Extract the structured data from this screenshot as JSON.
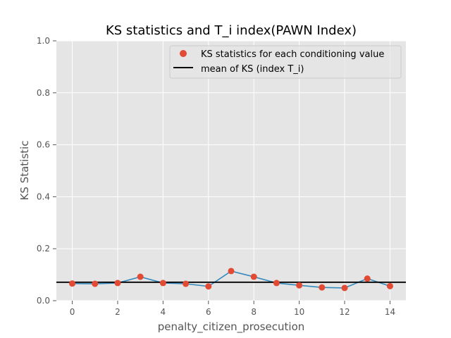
{
  "chart_data": {
    "type": "scatter",
    "title": "KS statistics and T_i index(PAWN Index)",
    "xlabel": "penalty_citizen_prosecution",
    "ylabel": "KS Statistic",
    "xlim": [
      -0.7,
      14.7
    ],
    "ylim": [
      0.0,
      1.0
    ],
    "xticks": [
      "0",
      "2",
      "4",
      "6",
      "8",
      "10",
      "12",
      "14"
    ],
    "yticks": [
      "0.0",
      "0.2",
      "0.4",
      "0.6",
      "0.8",
      "1.0"
    ],
    "grid": true,
    "legend_position": "top-right",
    "series": [
      {
        "name": "KS statistics for each conditioning value",
        "marker": "point",
        "color": "#E24A33",
        "line_color": "#348ABD",
        "x": [
          0,
          1,
          2,
          3,
          4,
          5,
          6,
          7,
          8,
          9,
          10,
          11,
          12,
          13,
          14
        ],
        "values": [
          0.066,
          0.065,
          0.068,
          0.092,
          0.068,
          0.065,
          0.055,
          0.114,
          0.092,
          0.068,
          0.059,
          0.051,
          0.049,
          0.085,
          0.056
        ]
      },
      {
        "name": "mean of KS (index T_i)",
        "marker": "hline",
        "color": "#000000",
        "value": 0.071
      }
    ],
    "colors": {
      "plot_bg": "#E5E5E5",
      "grid": "#FFFFFF",
      "text": "#555555",
      "title": "#000000"
    }
  }
}
